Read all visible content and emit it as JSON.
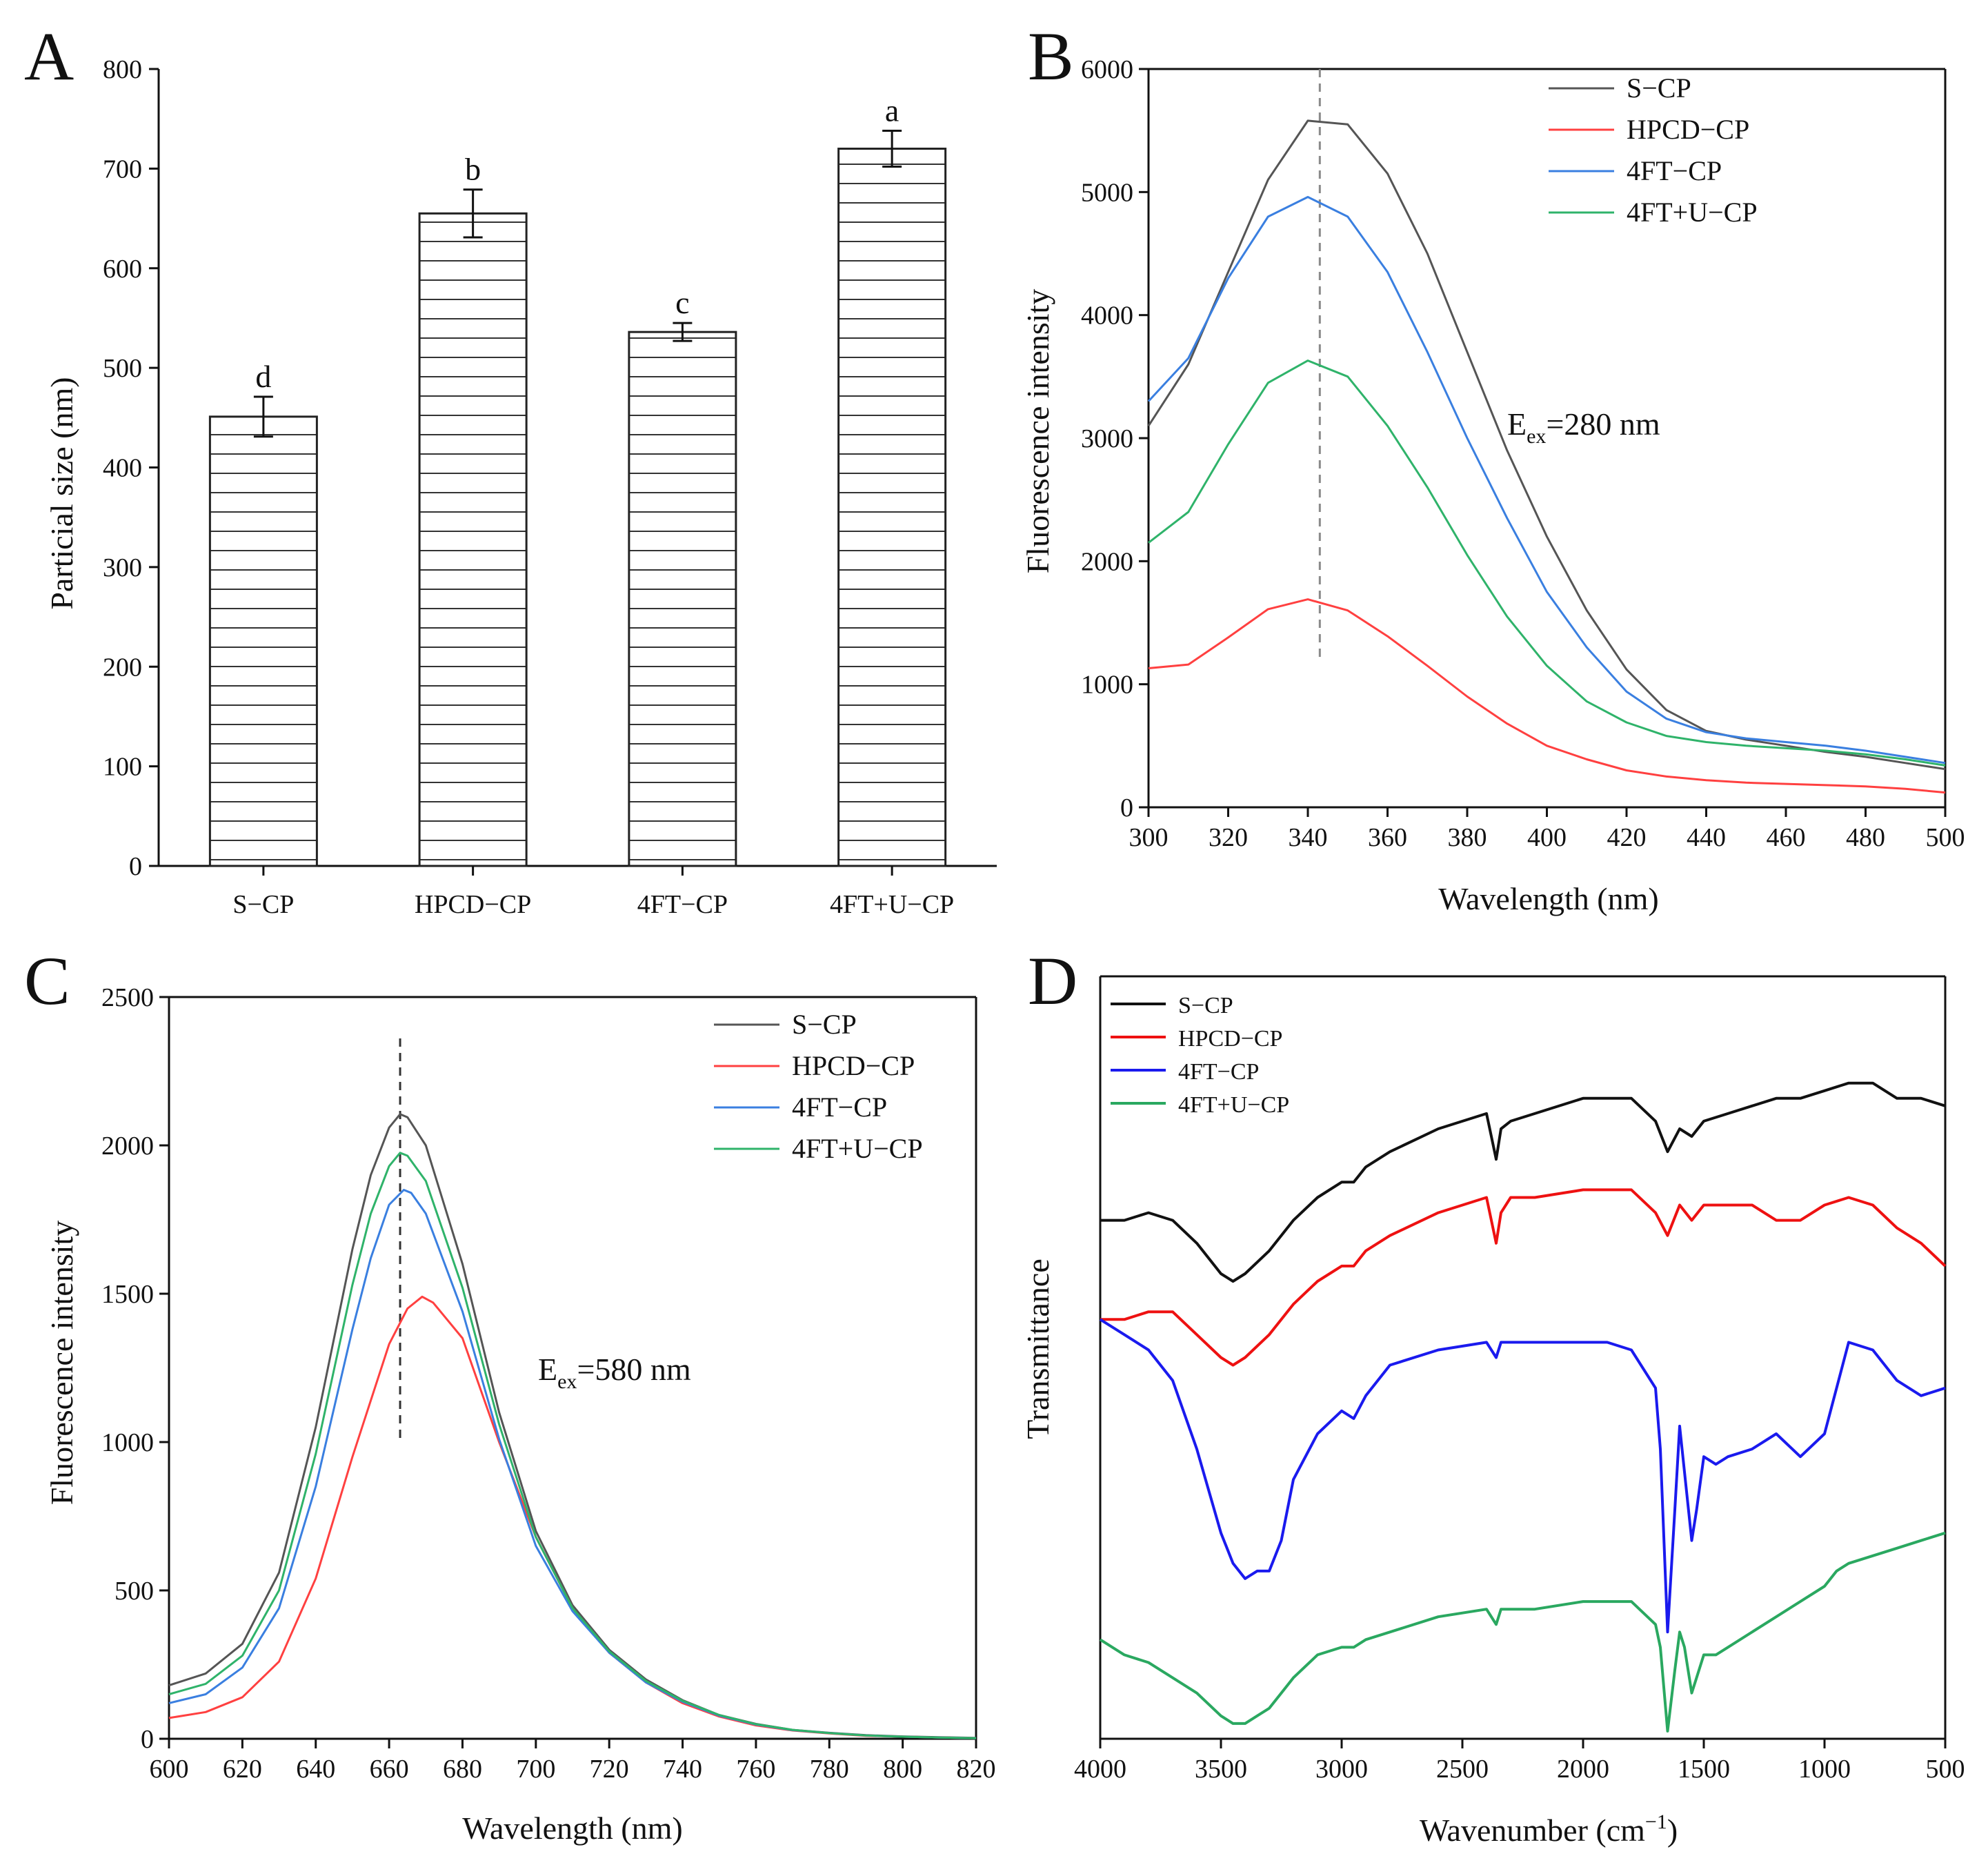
{
  "figure": {
    "panels": [
      "A",
      "B",
      "C",
      "D"
    ]
  },
  "chart_data": [
    {
      "panel": "A",
      "type": "bar",
      "title": "",
      "xlabel": "",
      "ylabel": "Particial size (nm)",
      "ylim": [
        0,
        800
      ],
      "yticks": [
        "0",
        "100",
        "200",
        "300",
        "400",
        "500",
        "600",
        "700",
        "800"
      ],
      "categories": [
        "S−CP",
        "HPCD−CP",
        "4FT−CP",
        "4FT+U−CP"
      ],
      "values": [
        451,
        655,
        536,
        720
      ],
      "errors": [
        20,
        24,
        9,
        18
      ],
      "significance_letters": [
        "d",
        "b",
        "c",
        "a"
      ],
      "bar_fill": "horizontal-hatch"
    },
    {
      "panel": "B",
      "type": "line",
      "xlabel": "Wavelength (nm)",
      "ylabel": "Fluorescence intensity",
      "xlim": [
        300,
        500
      ],
      "ylim": [
        0,
        6000
      ],
      "xticks": [
        "300",
        "320",
        "340",
        "360",
        "380",
        "400",
        "420",
        "440",
        "460",
        "480",
        "500"
      ],
      "yticks": [
        "0",
        "1000",
        "2000",
        "3000",
        "4000",
        "5000",
        "6000"
      ],
      "annotation": {
        "prefix": "E",
        "sub": "ex",
        "suffix": "=280 nm"
      },
      "reference_line_x": 343,
      "legend": [
        "S−CP",
        "HPCD−CP",
        "4FT−CP",
        "4FT+U−CP"
      ],
      "series": [
        {
          "name": "S−CP",
          "color": "#555555",
          "x": [
            300,
            310,
            320,
            330,
            340,
            350,
            360,
            370,
            380,
            390,
            400,
            410,
            420,
            430,
            440,
            450,
            460,
            470,
            480,
            490,
            500
          ],
          "values": [
            3100,
            3600,
            4350,
            5100,
            5580,
            5550,
            5150,
            4500,
            3700,
            2900,
            2200,
            1600,
            1120,
            790,
            620,
            550,
            500,
            450,
            410,
            360,
            310
          ]
        },
        {
          "name": "HPCD−CP",
          "color": "#ff4040",
          "x": [
            300,
            310,
            320,
            330,
            340,
            350,
            360,
            370,
            380,
            390,
            400,
            410,
            420,
            430,
            440,
            450,
            460,
            470,
            480,
            490,
            500
          ],
          "values": [
            1130,
            1160,
            1380,
            1610,
            1690,
            1600,
            1390,
            1150,
            900,
            680,
            500,
            390,
            300,
            250,
            220,
            200,
            190,
            180,
            170,
            150,
            120
          ]
        },
        {
          "name": "4FT−CP",
          "color": "#3a7fe0",
          "x": [
            300,
            310,
            320,
            330,
            340,
            350,
            360,
            370,
            380,
            390,
            400,
            410,
            420,
            430,
            440,
            450,
            460,
            470,
            480,
            490,
            500
          ],
          "values": [
            3300,
            3650,
            4300,
            4800,
            4960,
            4800,
            4350,
            3700,
            3000,
            2350,
            1750,
            1300,
            940,
            720,
            610,
            560,
            530,
            500,
            460,
            410,
            360
          ]
        },
        {
          "name": "4FT+U−CP",
          "color": "#2fb36a",
          "x": [
            300,
            310,
            320,
            330,
            340,
            350,
            360,
            370,
            380,
            390,
            400,
            410,
            420,
            430,
            440,
            450,
            460,
            470,
            480,
            490,
            500
          ],
          "values": [
            2150,
            2400,
            2950,
            3450,
            3630,
            3500,
            3100,
            2600,
            2050,
            1550,
            1150,
            860,
            690,
            580,
            530,
            500,
            480,
            460,
            430,
            390,
            340
          ]
        }
      ]
    },
    {
      "panel": "C",
      "type": "line",
      "xlabel": "Wavelength (nm)",
      "ylabel": "Fluorescence intensity",
      "xlim": [
        600,
        820
      ],
      "ylim": [
        0,
        2500
      ],
      "xticks": [
        "600",
        "620",
        "640",
        "660",
        "680",
        "700",
        "720",
        "740",
        "760",
        "780",
        "800",
        "820"
      ],
      "yticks": [
        "0",
        "500",
        "1000",
        "1500",
        "2000",
        "2500"
      ],
      "annotation": {
        "prefix": "E",
        "sub": "ex",
        "suffix": "=580 nm"
      },
      "reference_line_x": 663,
      "legend": [
        "S−CP",
        "HPCD−CP",
        "4FT−CP",
        "4FT+U−CP"
      ],
      "series": [
        {
          "name": "S−CP",
          "color": "#555555",
          "x": [
            600,
            610,
            620,
            630,
            640,
            650,
            655,
            660,
            663,
            665,
            670,
            680,
            690,
            700,
            710,
            720,
            730,
            740,
            750,
            760,
            770,
            780,
            790,
            800,
            810,
            820
          ],
          "values": [
            180,
            220,
            320,
            560,
            1050,
            1650,
            1900,
            2060,
            2105,
            2095,
            2000,
            1600,
            1100,
            700,
            450,
            300,
            200,
            130,
            80,
            50,
            30,
            20,
            12,
            8,
            5,
            3
          ]
        },
        {
          "name": "HPCD−CP",
          "color": "#ff4040",
          "x": [
            600,
            610,
            620,
            630,
            640,
            650,
            660,
            665,
            669,
            672,
            680,
            690,
            700,
            710,
            720,
            730,
            740,
            750,
            760,
            770,
            780,
            790,
            800,
            810,
            820
          ],
          "values": [
            70,
            90,
            140,
            260,
            540,
            950,
            1330,
            1450,
            1490,
            1470,
            1350,
            1000,
            680,
            440,
            290,
            190,
            120,
            75,
            45,
            28,
            18,
            10,
            7,
            4,
            2
          ]
        },
        {
          "name": "4FT−CP",
          "color": "#3a7fe0",
          "x": [
            600,
            610,
            620,
            630,
            640,
            650,
            655,
            660,
            664,
            666,
            670,
            680,
            690,
            700,
            710,
            720,
            730,
            740,
            750,
            760,
            770,
            780,
            790,
            800,
            810,
            820
          ],
          "values": [
            120,
            150,
            240,
            440,
            850,
            1380,
            1620,
            1800,
            1850,
            1840,
            1770,
            1440,
            1010,
            650,
            430,
            290,
            190,
            125,
            78,
            48,
            29,
            19,
            11,
            7,
            4,
            2
          ]
        },
        {
          "name": "4FT+U−CP",
          "color": "#2fb36a",
          "x": [
            600,
            610,
            620,
            630,
            640,
            650,
            655,
            660,
            663,
            665,
            670,
            680,
            690,
            700,
            710,
            720,
            730,
            740,
            750,
            760,
            770,
            780,
            790,
            800,
            810,
            820
          ],
          "values": [
            150,
            185,
            280,
            500,
            960,
            1530,
            1770,
            1930,
            1975,
            1965,
            1880,
            1520,
            1060,
            680,
            440,
            295,
            195,
            128,
            80,
            49,
            30,
            19,
            11,
            7,
            4,
            2
          ]
        }
      ]
    },
    {
      "panel": "D",
      "type": "line",
      "xlabel": "Wavenumber (cm−1)",
      "xlabel_prefix": "Wavenumber (cm",
      "xlabel_sup": "−1",
      "xlabel_suffix": ")",
      "ylabel": "Transmittance",
      "xlim": [
        4000,
        500
      ],
      "ylim": [
        0,
        100
      ],
      "yticks_shown": false,
      "xticks": [
        "4000",
        "3500",
        "3000",
        "2500",
        "2000",
        "1500",
        "1000",
        "500"
      ],
      "legend": [
        "S−CP",
        "HPCD−CP",
        "4FT−CP",
        "4FT+U−CP"
      ],
      "series": [
        {
          "name": "S−CP",
          "color": "#111111",
          "x": [
            4000,
            3900,
            3800,
            3700,
            3600,
            3500,
            3450,
            3400,
            3300,
            3200,
            3100,
            3000,
            2950,
            2900,
            2800,
            2600,
            2400,
            2360,
            2340,
            2300,
            2200,
            2000,
            1900,
            1800,
            1700,
            1650,
            1600,
            1550,
            1500,
            1400,
            1300,
            1200,
            1100,
            1000,
            900,
            800,
            700,
            600,
            500
          ],
          "values": [
            68,
            68,
            69,
            68,
            65,
            61,
            60,
            61,
            64,
            68,
            71,
            73,
            73,
            75,
            77,
            80,
            82,
            76,
            80,
            81,
            82,
            84,
            84,
            84,
            81,
            77,
            80,
            79,
            81,
            82,
            83,
            84,
            84,
            85,
            86,
            86,
            84,
            84,
            83
          ]
        },
        {
          "name": "HPCD−CP",
          "color": "#ee1111",
          "x": [
            4000,
            3900,
            3800,
            3700,
            3600,
            3500,
            3450,
            3400,
            3300,
            3200,
            3100,
            3000,
            2950,
            2900,
            2800,
            2600,
            2400,
            2360,
            2340,
            2300,
            2200,
            2000,
            1900,
            1800,
            1700,
            1650,
            1600,
            1550,
            1500,
            1400,
            1300,
            1200,
            1100,
            1000,
            900,
            800,
            700,
            600,
            500
          ],
          "values": [
            55,
            55,
            56,
            56,
            53,
            50,
            49,
            50,
            53,
            57,
            60,
            62,
            62,
            64,
            66,
            69,
            71,
            65,
            69,
            71,
            71,
            72,
            72,
            72,
            69,
            66,
            70,
            68,
            70,
            70,
            70,
            68,
            68,
            70,
            71,
            70,
            67,
            65,
            62
          ]
        },
        {
          "name": "4FT−CP",
          "color": "#1a1aee",
          "x": [
            4000,
            3900,
            3800,
            3700,
            3600,
            3500,
            3450,
            3400,
            3350,
            3300,
            3250,
            3200,
            3100,
            3000,
            2950,
            2900,
            2800,
            2600,
            2400,
            2360,
            2340,
            2300,
            2200,
            2000,
            1900,
            1800,
            1700,
            1680,
            1650,
            1620,
            1600,
            1580,
            1550,
            1530,
            1500,
            1450,
            1400,
            1300,
            1200,
            1100,
            1000,
            950,
            900,
            800,
            700,
            600,
            500
          ],
          "values": [
            55,
            53,
            51,
            47,
            38,
            27,
            23,
            21,
            22,
            22,
            26,
            34,
            40,
            43,
            42,
            45,
            49,
            51,
            52,
            50,
            52,
            52,
            52,
            52,
            52,
            51,
            46,
            38,
            14,
            30,
            41,
            35,
            26,
            30,
            37,
            36,
            37,
            38,
            40,
            37,
            40,
            46,
            52,
            51,
            47,
            45,
            46
          ]
        },
        {
          "name": "4FT+U−CP",
          "color": "#2aa860",
          "x": [
            4000,
            3900,
            3800,
            3700,
            3600,
            3500,
            3450,
            3400,
            3350,
            3300,
            3250,
            3200,
            3100,
            3000,
            2950,
            2900,
            2800,
            2600,
            2400,
            2360,
            2340,
            2300,
            2200,
            2000,
            1900,
            1800,
            1700,
            1680,
            1650,
            1620,
            1600,
            1580,
            1550,
            1530,
            1500,
            1450,
            1400,
            1300,
            1200,
            1100,
            1000,
            950,
            900,
            800,
            700,
            600,
            500
          ],
          "values": [
            13,
            11,
            10,
            8,
            6,
            3,
            2,
            2,
            3,
            4,
            6,
            8,
            11,
            12,
            12,
            13,
            14,
            16,
            17,
            15,
            17,
            17,
            17,
            18,
            18,
            18,
            15,
            12,
            1,
            9,
            14,
            12,
            6,
            8,
            11,
            11,
            12,
            14,
            16,
            18,
            20,
            22,
            23,
            24,
            25,
            26,
            27
          ]
        }
      ]
    }
  ]
}
